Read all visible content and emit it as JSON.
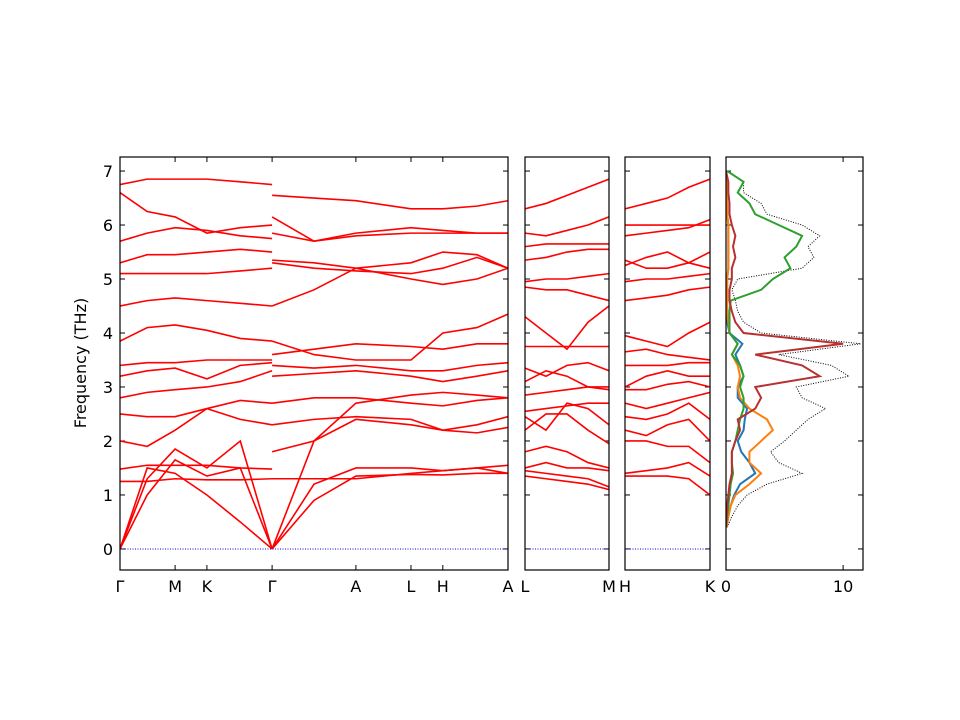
{
  "chart_data": [
    {
      "type": "line",
      "ylabel": "Frequency (THz)",
      "x": [
        0,
        0.07,
        0.142,
        0.224,
        0.31,
        0.392,
        0.392,
        0.392,
        0.5,
        0.608,
        0.75,
        0.832,
        0.92,
        1.0
      ],
      "xlim": [
        0,
        1
      ],
      "xticks": [
        {
          "value": 0,
          "label": "Γ"
        },
        {
          "value": 0.142,
          "label": "M"
        },
        {
          "value": 0.224,
          "label": "K"
        },
        {
          "value": 0.392,
          "label": "Γ"
        },
        {
          "value": 0.608,
          "label": "A"
        },
        {
          "value": 0.75,
          "label": "L"
        },
        {
          "value": 0.832,
          "label": "H"
        },
        {
          "value": 1.0,
          "label": "A"
        }
      ],
      "ylim": [
        -0.39,
        7.26
      ],
      "yticks": [
        0,
        1,
        2,
        3,
        4,
        5,
        6,
        7
      ],
      "ytick_labels": true,
      "series": [
        {
          "color": "#ff0000",
          "values": [
            0,
            1.5,
            1.4,
            1.0,
            0.5,
            0,
            null,
            0,
            0.9,
            1.35,
            1.38,
            1.37,
            1.4,
            1.4
          ]
        },
        {
          "color": "#ff0000",
          "values": [
            0,
            1.0,
            1.65,
            1.35,
            1.5,
            0,
            null,
            0,
            1.2,
            1.5,
            1.5,
            1.45,
            1.5,
            1.55
          ]
        },
        {
          "color": "#ff0000",
          "values": [
            0,
            1.3,
            1.85,
            1.5,
            2.0,
            0,
            null,
            0,
            2.0,
            2.7,
            2.85,
            2.9,
            2.85,
            2.8
          ]
        },
        {
          "color": "#ff0000",
          "values": [
            1.25,
            1.25,
            1.3,
            1.28,
            1.28,
            1.3,
            null,
            1.3,
            1.3,
            1.3,
            1.4,
            1.45,
            1.5,
            1.4
          ]
        },
        {
          "color": "#ff0000",
          "values": [
            1.48,
            1.55,
            1.55,
            1.55,
            1.5,
            1.48,
            null,
            1.8,
            2.0,
            2.4,
            2.3,
            2.2,
            2.3,
            2.45
          ]
        },
        {
          "color": "#ff0000",
          "values": [
            2.0,
            1.9,
            2.2,
            2.6,
            2.4,
            2.3,
            null,
            2.3,
            2.4,
            2.45,
            2.4,
            2.2,
            2.15,
            2.25
          ]
        },
        {
          "color": "#ff0000",
          "values": [
            2.5,
            2.45,
            2.45,
            2.6,
            2.75,
            2.7,
            null,
            2.7,
            2.8,
            2.8,
            2.7,
            2.65,
            2.75,
            2.8
          ]
        },
        {
          "color": "#ff0000",
          "values": [
            2.8,
            2.9,
            2.95,
            3.0,
            3.1,
            3.3,
            null,
            3.2,
            3.25,
            3.3,
            3.2,
            3.1,
            3.2,
            3.3
          ]
        },
        {
          "color": "#ff0000",
          "values": [
            3.2,
            3.3,
            3.35,
            3.15,
            3.4,
            3.45,
            null,
            3.4,
            3.35,
            3.4,
            3.3,
            3.3,
            3.4,
            3.45
          ]
        },
        {
          "color": "#ff0000",
          "values": [
            3.4,
            3.45,
            3.45,
            3.5,
            3.5,
            3.5,
            null,
            3.6,
            3.7,
            3.8,
            3.75,
            3.7,
            3.8,
            3.8
          ]
        },
        {
          "color": "#ff0000",
          "values": [
            3.85,
            4.1,
            4.15,
            4.05,
            3.9,
            3.85,
            null,
            3.85,
            3.6,
            3.5,
            3.5,
            4.0,
            4.1,
            4.35
          ]
        },
        {
          "color": "#ff0000",
          "values": [
            4.5,
            4.6,
            4.65,
            4.6,
            4.55,
            4.5,
            null,
            4.5,
            4.8,
            5.2,
            5.0,
            4.9,
            5.0,
            5.2
          ]
        },
        {
          "color": "#ff0000",
          "values": [
            5.1,
            5.1,
            5.1,
            5.1,
            5.15,
            5.2,
            null,
            5.3,
            5.2,
            5.15,
            5.1,
            5.2,
            5.4,
            5.2
          ]
        },
        {
          "color": "#ff0000",
          "values": [
            5.3,
            5.45,
            5.45,
            5.5,
            5.55,
            5.5,
            null,
            5.35,
            5.3,
            5.2,
            5.3,
            5.5,
            5.45,
            5.2
          ]
        },
        {
          "color": "#ff0000",
          "values": [
            5.7,
            5.85,
            5.95,
            5.9,
            5.8,
            5.75,
            null,
            6.15,
            5.7,
            5.8,
            5.85,
            5.85,
            5.85,
            5.85
          ]
        },
        {
          "color": "#ff0000",
          "values": [
            6.6,
            6.25,
            6.15,
            5.85,
            5.95,
            6.0,
            null,
            6.55,
            6.5,
            6.45,
            6.3,
            6.3,
            6.35,
            6.45
          ]
        },
        {
          "color": "#ff0000",
          "values": [
            6.75,
            6.85,
            6.85,
            6.85,
            6.8,
            6.75,
            null,
            5.85,
            5.7,
            5.85,
            5.95,
            5.9,
            5.85,
            5.85
          ]
        },
        {
          "color": "#0000cd",
          "linestyle": "dotted",
          "values": [
            0,
            0,
            0,
            0,
            0,
            0,
            0,
            0,
            0,
            0,
            0,
            0,
            0,
            0
          ]
        }
      ]
    },
    {
      "type": "line",
      "x": [
        0,
        0.25,
        0.5,
        0.75,
        1
      ],
      "xlim": [
        0,
        1
      ],
      "xticks": [
        {
          "value": 0,
          "label": "L"
        },
        {
          "value": 1,
          "label": "M"
        }
      ],
      "ylim": [
        -0.39,
        7.26
      ],
      "yticks": [
        0,
        1,
        2,
        3,
        4,
        5,
        6,
        7
      ],
      "ytick_labels": false,
      "series": [
        {
          "color": "#ff0000",
          "values": [
            1.35,
            1.3,
            1.25,
            1.2,
            1.1
          ]
        },
        {
          "color": "#ff0000",
          "values": [
            1.45,
            1.4,
            1.35,
            1.3,
            1.15
          ]
        },
        {
          "color": "#ff0000",
          "values": [
            1.5,
            1.6,
            1.5,
            1.5,
            1.45
          ]
        },
        {
          "color": "#ff0000",
          "values": [
            1.8,
            1.9,
            1.8,
            1.6,
            1.5
          ]
        },
        {
          "color": "#ff0000",
          "values": [
            2.2,
            2.5,
            2.5,
            2.2,
            1.95
          ]
        },
        {
          "color": "#ff0000",
          "values": [
            2.45,
            2.2,
            2.7,
            2.6,
            2.3
          ]
        },
        {
          "color": "#ff0000",
          "values": [
            2.55,
            2.6,
            2.65,
            2.7,
            2.7
          ]
        },
        {
          "color": "#ff0000",
          "values": [
            2.85,
            2.9,
            2.95,
            3.0,
            3.0
          ]
        },
        {
          "color": "#ff0000",
          "values": [
            3.1,
            3.3,
            3.2,
            3.0,
            2.95
          ]
        },
        {
          "color": "#ff0000",
          "values": [
            3.35,
            3.2,
            3.4,
            3.45,
            3.3
          ]
        },
        {
          "color": "#ff0000",
          "values": [
            3.75,
            3.75,
            3.75,
            3.75,
            3.75
          ]
        },
        {
          "color": "#ff0000",
          "values": [
            4.3,
            4.0,
            3.7,
            4.2,
            4.5
          ]
        },
        {
          "color": "#ff0000",
          "values": [
            4.85,
            4.8,
            4.8,
            4.7,
            4.6
          ]
        },
        {
          "color": "#ff0000",
          "values": [
            4.95,
            5.0,
            5.0,
            5.05,
            5.1
          ]
        },
        {
          "color": "#ff0000",
          "values": [
            5.35,
            5.4,
            5.5,
            5.55,
            5.55
          ]
        },
        {
          "color": "#ff0000",
          "values": [
            5.6,
            5.65,
            5.65,
            5.65,
            5.65
          ]
        },
        {
          "color": "#ff0000",
          "values": [
            5.85,
            5.8,
            5.9,
            6.0,
            6.15
          ]
        },
        {
          "color": "#ff0000",
          "values": [
            6.3,
            6.4,
            6.55,
            6.7,
            6.85
          ]
        },
        {
          "color": "#0000cd",
          "linestyle": "dotted",
          "values": [
            0,
            0,
            0,
            0,
            0
          ]
        }
      ]
    },
    {
      "type": "line",
      "x": [
        0,
        0.25,
        0.5,
        0.75,
        1
      ],
      "xlim": [
        0,
        1
      ],
      "xticks": [
        {
          "value": 0,
          "label": "H"
        },
        {
          "value": 1,
          "label": "K"
        }
      ],
      "ylim": [
        -0.39,
        7.26
      ],
      "yticks": [
        0,
        1,
        2,
        3,
        4,
        5,
        6,
        7
      ],
      "ytick_labels": false,
      "series": [
        {
          "color": "#ff0000",
          "values": [
            1.35,
            1.35,
            1.35,
            1.3,
            1.0
          ]
        },
        {
          "color": "#ff0000",
          "values": [
            1.4,
            1.45,
            1.5,
            1.6,
            1.35
          ]
        },
        {
          "color": "#ff0000",
          "values": [
            2.0,
            2.0,
            1.9,
            1.9,
            1.6
          ]
        },
        {
          "color": "#ff0000",
          "values": [
            2.2,
            2.1,
            2.3,
            2.4,
            2.0
          ]
        },
        {
          "color": "#ff0000",
          "values": [
            2.45,
            2.4,
            2.5,
            2.7,
            2.4
          ]
        },
        {
          "color": "#ff0000",
          "values": [
            2.7,
            2.6,
            2.7,
            2.8,
            2.9
          ]
        },
        {
          "color": "#ff0000",
          "values": [
            2.95,
            2.95,
            3.05,
            3.1,
            3.0
          ]
        },
        {
          "color": "#ff0000",
          "values": [
            3.0,
            3.2,
            3.3,
            3.2,
            3.2
          ]
        },
        {
          "color": "#ff0000",
          "values": [
            3.4,
            3.4,
            3.4,
            3.45,
            3.45
          ]
        },
        {
          "color": "#ff0000",
          "values": [
            3.65,
            3.7,
            3.6,
            3.55,
            3.5
          ]
        },
        {
          "color": "#ff0000",
          "values": [
            3.95,
            3.85,
            3.75,
            4.0,
            4.2
          ]
        },
        {
          "color": "#ff0000",
          "values": [
            4.6,
            4.65,
            4.7,
            4.8,
            4.85
          ]
        },
        {
          "color": "#ff0000",
          "values": [
            4.95,
            5.0,
            5.0,
            5.05,
            5.1
          ]
        },
        {
          "color": "#ff0000",
          "values": [
            5.25,
            5.4,
            5.5,
            5.3,
            5.2
          ]
        },
        {
          "color": "#ff0000",
          "values": [
            5.35,
            5.2,
            5.2,
            5.3,
            5.5
          ]
        },
        {
          "color": "#ff0000",
          "values": [
            5.8,
            5.85,
            5.9,
            5.95,
            6.1
          ]
        },
        {
          "color": "#ff0000",
          "values": [
            6.0,
            6.0,
            6.0,
            6.0,
            6.0
          ]
        },
        {
          "color": "#ff0000",
          "values": [
            6.3,
            6.4,
            6.5,
            6.7,
            6.85
          ]
        },
        {
          "color": "#0000cd",
          "linestyle": "dotted",
          "values": [
            0,
            0,
            0,
            0,
            0
          ]
        }
      ]
    },
    {
      "type": "dos",
      "y": [
        0.4,
        0.6,
        0.8,
        1.0,
        1.2,
        1.4,
        1.6,
        1.8,
        2.0,
        2.2,
        2.4,
        2.6,
        2.8,
        3.0,
        3.2,
        3.4,
        3.6,
        3.8,
        4.0,
        4.2,
        4.4,
        4.6,
        4.8,
        5.0,
        5.2,
        5.4,
        5.6,
        5.8,
        6.0,
        6.2,
        6.4,
        6.6,
        6.8,
        7.0
      ],
      "xlim": [
        0,
        11.7
      ],
      "xticks": [
        0,
        10
      ],
      "ylim": [
        -0.39,
        7.26
      ],
      "yticks": [
        0,
        1,
        2,
        3,
        4,
        5,
        6,
        7
      ],
      "ytick_labels": false,
      "series": [
        {
          "color": "#000000",
          "linestyle": "dotted",
          "values": [
            0.1,
            0.5,
            1.0,
            1.8,
            3.5,
            6.5,
            4.5,
            3.8,
            5.0,
            6.0,
            7.0,
            8.5,
            6.5,
            6.0,
            10.5,
            9.0,
            4.5,
            11.5,
            3.0,
            1.5,
            1.0,
            0.8,
            0.5,
            1.0,
            6.5,
            7.5,
            7.0,
            8.0,
            6.5,
            3.5,
            3.0,
            1.5,
            1.5,
            0.2
          ]
        },
        {
          "color": "#1f77b4",
          "values": [
            0.05,
            0.2,
            0.4,
            0.7,
            1.2,
            2.5,
            2.0,
            1.3,
            1.0,
            1.5,
            1.6,
            1.8,
            1.0,
            1.0,
            1.5,
            1.2,
            0.8,
            1.4,
            0.3,
            0.1,
            0.1,
            0.1,
            0.1,
            0.1,
            0.2,
            0.2,
            0.2,
            0.2,
            0.2,
            0.1,
            0.1,
            0.05,
            0.05,
            0
          ]
        },
        {
          "color": "#ff7f0e",
          "values": [
            0.05,
            0.2,
            0.4,
            0.8,
            2.0,
            3.0,
            2.0,
            2.0,
            3.0,
            4.0,
            3.5,
            2.0,
            1.2,
            1.0,
            1.2,
            1.0,
            0.5,
            1.0,
            0.3,
            0.2,
            0.1,
            0.1,
            0.1,
            0.1,
            0.2,
            0.2,
            0.2,
            0.2,
            0.2,
            0.1,
            0.1,
            0.05,
            0.05,
            0
          ]
        },
        {
          "color": "#2ca02c",
          "values": [
            0,
            0.1,
            0.2,
            0.3,
            0.4,
            0.6,
            0.5,
            0.5,
            0.8,
            1.0,
            1.2,
            1.5,
            1.5,
            1.2,
            1.5,
            1.2,
            0.5,
            1.0,
            0.3,
            0.3,
            0.3,
            0.4,
            3.0,
            4.0,
            5.5,
            5.0,
            6.0,
            6.5,
            4.5,
            2.5,
            2.0,
            1.0,
            1.5,
            0.1
          ]
        },
        {
          "color": "#b83030",
          "values": [
            0,
            0.05,
            0.1,
            0.2,
            0.3,
            0.5,
            0.5,
            0.5,
            0.8,
            1.2,
            1.0,
            2.5,
            3.0,
            2.5,
            8.0,
            6.5,
            2.5,
            10.0,
            1.5,
            0.8,
            0.5,
            0.3,
            0.3,
            0.5,
            0.5,
            0.8,
            0.6,
            0.8,
            0.5,
            0.3,
            0.3,
            0.2,
            0.2,
            0
          ]
        }
      ]
    }
  ]
}
